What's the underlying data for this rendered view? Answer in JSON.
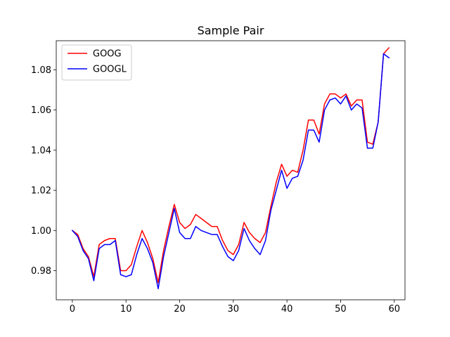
{
  "chart_data": {
    "type": "line",
    "title": "Sample Pair",
    "xlabel": "",
    "ylabel": "",
    "xlim": [
      -3,
      62
    ],
    "ylim": [
      0.9655,
      1.0945
    ],
    "xticks": [
      0,
      10,
      20,
      30,
      40,
      50,
      60
    ],
    "xtick_labels": [
      "0",
      "10",
      "20",
      "30",
      "40",
      "50",
      "60"
    ],
    "yticks": [
      0.98,
      1.0,
      1.02,
      1.04,
      1.06,
      1.08
    ],
    "ytick_labels": [
      "0.98",
      "1.00",
      "1.02",
      "1.04",
      "1.06",
      "1.08"
    ],
    "grid": false,
    "legend_position": "upper-left",
    "x": [
      0,
      1,
      2,
      3,
      4,
      5,
      6,
      7,
      8,
      9,
      10,
      11,
      12,
      13,
      14,
      15,
      16,
      17,
      18,
      19,
      20,
      21,
      22,
      23,
      24,
      25,
      26,
      27,
      28,
      29,
      30,
      31,
      32,
      33,
      34,
      35,
      36,
      37,
      38,
      39,
      40,
      41,
      42,
      43,
      44,
      45,
      46,
      47,
      48,
      49,
      50,
      51,
      52,
      53,
      54,
      55,
      56,
      57,
      58,
      59
    ],
    "series": [
      {
        "name": "GOOG",
        "color": "#ff0000",
        "values": [
          1.0,
          0.998,
          0.991,
          0.987,
          0.977,
          0.993,
          0.995,
          0.996,
          0.996,
          0.98,
          0.98,
          0.983,
          0.992,
          1.0,
          0.994,
          0.986,
          0.974,
          0.99,
          1.002,
          1.013,
          1.004,
          1.001,
          1.003,
          1.008,
          1.006,
          1.004,
          1.002,
          1.002,
          0.995,
          0.99,
          0.988,
          0.993,
          1.004,
          0.999,
          0.996,
          0.994,
          0.999,
          1.012,
          1.024,
          1.033,
          1.027,
          1.03,
          1.029,
          1.04,
          1.055,
          1.055,
          1.048,
          1.063,
          1.068,
          1.068,
          1.066,
          1.068,
          1.062,
          1.065,
          1.065,
          1.044,
          1.043,
          1.054,
          1.088,
          1.091
        ]
      },
      {
        "name": "GOOGL",
        "color": "#0000ff",
        "values": [
          1.0,
          0.997,
          0.99,
          0.986,
          0.975,
          0.991,
          0.993,
          0.993,
          0.995,
          0.978,
          0.977,
          0.978,
          0.988,
          0.996,
          0.991,
          0.984,
          0.971,
          0.987,
          0.999,
          1.011,
          0.999,
          0.996,
          0.996,
          1.002,
          1.0,
          0.999,
          0.998,
          0.998,
          0.992,
          0.987,
          0.985,
          0.99,
          1.001,
          0.995,
          0.991,
          0.988,
          0.995,
          1.01,
          1.02,
          1.03,
          1.021,
          1.026,
          1.027,
          1.035,
          1.05,
          1.05,
          1.044,
          1.06,
          1.065,
          1.066,
          1.063,
          1.067,
          1.06,
          1.063,
          1.061,
          1.041,
          1.041,
          1.054,
          1.088,
          1.086
        ]
      }
    ]
  }
}
